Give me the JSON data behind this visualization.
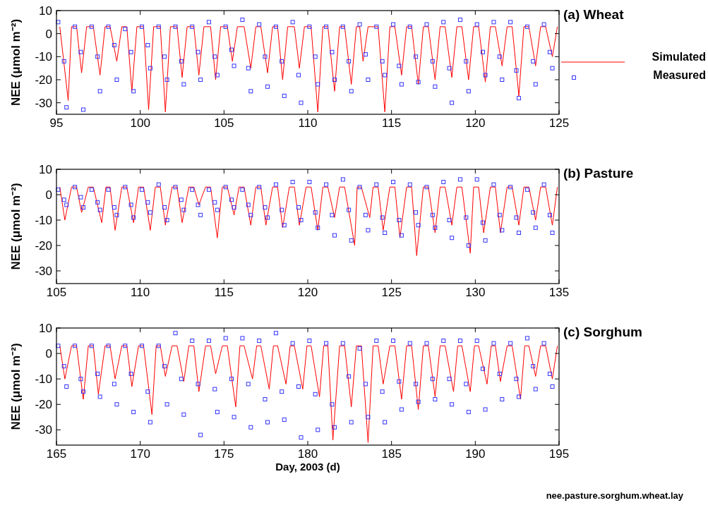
{
  "chart_data": [
    {
      "type": "line",
      "title": "(a) Wheat",
      "ylabel": "NEE (μmol m⁻²)",
      "xlim": [
        95,
        125
      ],
      "xticks": [
        95,
        100,
        105,
        110,
        115,
        120,
        125
      ],
      "ylim": [
        -35,
        10
      ],
      "yticks": [
        10,
        0,
        -10,
        -20,
        -30
      ],
      "legend": "right",
      "marker": "none",
      "series": [
        {
          "name": "Simulated",
          "color": "#ff0000",
          "x": [
            95.2,
            95.7,
            95.9,
            96.2,
            96.5,
            96.8,
            97.2,
            97.6,
            97.9,
            98.2,
            98.6,
            98.9,
            99.2,
            99.5,
            99.8,
            100.2,
            100.5,
            100.8,
            101.2,
            101.5,
            101.8,
            102.2,
            102.5,
            102.8,
            103.2,
            103.5,
            103.8,
            104.2,
            104.5,
            104.8,
            105.2,
            105.5,
            105.8,
            106.2,
            106.6,
            106.9,
            107.2,
            107.6,
            107.9,
            108.2,
            108.5,
            108.8,
            109.2,
            109.5,
            109.8,
            110.2,
            110.6,
            110.9,
            111.2,
            111.6,
            111.9,
            112.2,
            112.6,
            112.9,
            113.1,
            113.3,
            113.6,
            114.2,
            114.6,
            114.9,
            115.2,
            115.6,
            115.9,
            116.2,
            116.6,
            116.9,
            117.2,
            117.6,
            117.9,
            118.2,
            118.6,
            118.9,
            119.2,
            119.6,
            119.9,
            120.2,
            120.6,
            120.9,
            121.2,
            121.6,
            121.9,
            122.2,
            122.6,
            122.9,
            123.2,
            123.6,
            123.9,
            124.2,
            124.6,
            124.9
          ],
          "values": [
            3,
            -29,
            3,
            3,
            -17,
            3,
            3,
            -18,
            3,
            3,
            -12,
            3,
            3,
            -25,
            3,
            3,
            -33,
            3,
            3,
            -34,
            3,
            3,
            -19,
            3,
            3,
            -18,
            3,
            3,
            -20,
            3,
            3,
            -12,
            3,
            3,
            -15,
            3,
            3,
            -17,
            3,
            3,
            -20,
            3,
            3,
            -15,
            3,
            3,
            -34,
            3,
            3,
            -25,
            3,
            3,
            -22,
            3,
            3,
            -12,
            3,
            3,
            -34,
            3,
            3,
            -18,
            3,
            3,
            -22,
            3,
            3,
            -20,
            3,
            3,
            -19,
            3,
            3,
            -20,
            3,
            3,
            -21,
            3,
            3,
            -14,
            3,
            3,
            -27,
            3,
            3,
            -14,
            3,
            3,
            -10,
            3
          ]
        },
        {
          "name": "Measured",
          "type": "scatter",
          "marker": "square",
          "color": "#3333ff",
          "x": [
            95.1,
            95.45,
            95.6,
            96.1,
            96.45,
            96.6,
            97.1,
            97.45,
            97.6,
            98.1,
            98.45,
            98.6,
            99.1,
            99.45,
            99.6,
            100.1,
            100.45,
            100.6,
            101.1,
            101.45,
            101.6,
            102.1,
            102.45,
            102.6,
            103.1,
            103.45,
            103.6,
            104.1,
            104.45,
            104.6,
            105.1,
            105.45,
            105.6,
            106.1,
            106.45,
            106.6,
            107.1,
            107.45,
            107.6,
            108.1,
            108.45,
            108.6,
            109.1,
            109.45,
            109.6,
            110.1,
            110.45,
            110.6,
            111.1,
            111.45,
            111.6,
            112.1,
            112.45,
            112.6,
            113.1,
            113.45,
            113.6,
            114.1,
            114.45,
            114.6,
            115.1,
            115.45,
            115.6,
            116.1,
            116.45,
            116.6,
            117.1,
            117.45,
            117.6,
            118.1,
            118.45,
            118.6,
            119.1,
            119.45,
            119.6,
            120.1,
            120.45,
            120.6,
            121.1,
            121.45,
            121.6,
            122.1,
            122.45,
            122.6,
            123.1,
            123.45,
            123.6,
            124.1,
            124.45,
            124.6
          ],
          "values": [
            5,
            -12,
            -32,
            3,
            -8,
            -33,
            3,
            -10,
            -25,
            3,
            -5,
            -20,
            2,
            -8,
            -25,
            3,
            -5,
            -15,
            3,
            -10,
            -20,
            3,
            -12,
            -22,
            3,
            -8,
            -20,
            5,
            -10,
            -18,
            3,
            -7,
            -14,
            6,
            -15,
            -25,
            4,
            -10,
            -23,
            3,
            -12,
            -27,
            5,
            -18,
            -30,
            3,
            -10,
            -22,
            3,
            -8,
            -20,
            3,
            -12,
            -25,
            4,
            -9,
            -20,
            3,
            -12,
            -18,
            4,
            -14,
            -22,
            3,
            -10,
            -21,
            4,
            -12,
            -23,
            5,
            -15,
            -30,
            6,
            -12,
            -25,
            4,
            -8,
            -18,
            5,
            -10,
            -20,
            5,
            -16,
            -28,
            3,
            -12,
            -22,
            4,
            -8,
            -15
          ]
        }
      ]
    },
    {
      "type": "line",
      "title": "(b) Pasture",
      "ylabel": "NEE (μmol m⁻²)",
      "xlim": [
        105,
        135
      ],
      "xticks": [
        105,
        110,
        115,
        120,
        125,
        130,
        135
      ],
      "ylim": [
        -35,
        10
      ],
      "yticks": [
        10,
        0,
        -10,
        -20,
        -30
      ],
      "marker": "none",
      "series": [
        {
          "color": "#ff0000",
          "x": [
            105.2,
            105.5,
            105.9,
            106.2,
            106.5,
            106.9,
            107.2,
            107.7,
            107.95,
            108.2,
            108.5,
            108.9,
            109.2,
            109.6,
            109.9,
            110.2,
            110.6,
            110.9,
            111.2,
            111.5,
            111.9,
            112.2,
            112.5,
            112.9,
            113.2,
            113.5,
            113.9,
            114.2,
            114.6,
            114.9,
            115.2,
            115.6,
            115.9,
            116.2,
            116.6,
            116.9,
            117.2,
            117.5,
            117.9,
            118.2,
            118.5,
            118.9,
            119.2,
            119.5,
            119.9,
            120.2,
            120.6,
            120.9,
            121.2,
            121.6,
            121.9,
            122.2,
            122.8,
            122.95,
            123.2,
            123.7,
            123.9,
            124.2,
            124.5,
            124.9,
            125.2,
            125.5,
            125.9,
            126.2,
            126.5,
            126.9,
            127.2,
            127.6,
            127.9,
            128.2,
            128.6,
            128.9,
            129.2,
            129.7,
            129.9,
            130.2,
            130.5,
            130.9,
            131.2,
            131.5,
            131.9,
            132.2,
            132.6,
            132.9,
            133.2,
            133.6,
            133.9,
            134.2,
            134.6,
            134.9
          ],
          "values": [
            3,
            -10,
            3,
            3,
            -7,
            3,
            3,
            -11,
            3,
            3,
            -14,
            3,
            3,
            -11,
            3,
            3,
            -14,
            3,
            3,
            -12,
            3,
            3,
            -11,
            3,
            3,
            -4,
            3,
            3,
            -17,
            3,
            3,
            -8,
            3,
            3,
            -12,
            3,
            3,
            -12,
            3,
            3,
            -13,
            3,
            3,
            -12,
            3,
            3,
            -14,
            3,
            3,
            -9,
            3,
            3,
            -20,
            3,
            3,
            -9,
            3,
            3,
            -14,
            3,
            3,
            -17,
            3,
            3,
            -24,
            3,
            3,
            -15,
            3,
            3,
            -12,
            3,
            3,
            -23,
            3,
            3,
            -15,
            3,
            3,
            -15,
            3,
            3,
            -12,
            3,
            3,
            -10,
            3,
            3,
            -12,
            3
          ]
        },
        {
          "type": "scatter",
          "marker": "square",
          "color": "#3333ff",
          "x": [
            105.1,
            105.45,
            105.6,
            106.1,
            106.45,
            106.6,
            107.1,
            107.45,
            107.6,
            108.1,
            108.45,
            108.6,
            109.1,
            109.45,
            109.6,
            110.1,
            110.45,
            110.6,
            111.1,
            111.45,
            111.6,
            112.1,
            112.45,
            112.6,
            113.1,
            113.45,
            113.6,
            114.1,
            114.45,
            114.6,
            115.1,
            115.45,
            115.6,
            116.1,
            116.45,
            116.6,
            117.1,
            117.45,
            117.6,
            118.1,
            118.45,
            118.6,
            119.1,
            119.45,
            119.6,
            120.1,
            120.45,
            120.6,
            121.1,
            121.45,
            121.6,
            122.1,
            122.45,
            122.6,
            123.1,
            123.45,
            123.6,
            124.1,
            124.45,
            124.6,
            125.1,
            125.45,
            125.6,
            126.1,
            126.45,
            126.6,
            127.1,
            127.45,
            127.6,
            128.1,
            128.45,
            128.6,
            129.1,
            129.45,
            129.6,
            130.1,
            130.45,
            130.6,
            131.1,
            131.45,
            131.6,
            132.1,
            132.45,
            132.6,
            133.1,
            133.45,
            133.6,
            134.1,
            134.45,
            134.6
          ],
          "values": [
            2,
            -2,
            -4,
            3,
            -1,
            -5,
            2,
            -3,
            -6,
            2,
            -5,
            -8,
            3,
            -4,
            -9,
            2,
            -3,
            -7,
            4,
            -5,
            -10,
            3,
            -2,
            -6,
            2,
            -4,
            -8,
            2,
            -3,
            -6,
            3,
            -2,
            -5,
            2,
            -4,
            -8,
            3,
            -5,
            -9,
            4,
            -6,
            -12,
            5,
            -5,
            -10,
            5,
            -7,
            -13,
            4,
            -8,
            -16,
            6,
            -6,
            -18,
            3,
            -8,
            -14,
            4,
            -9,
            -15,
            5,
            -10,
            -16,
            4,
            -7,
            -12,
            3,
            -8,
            -13,
            5,
            -10,
            -17,
            6,
            -9,
            -20,
            6,
            -11,
            -18,
            4,
            -8,
            -14,
            3,
            -9,
            -15,
            2,
            -7,
            -13,
            4,
            -8,
            -15
          ]
        }
      ]
    },
    {
      "type": "line",
      "title": "(c) Sorghum",
      "ylabel": "NEE (μmol m⁻²)",
      "xlabel": "Day, 2003 (d)",
      "annotations": [
        "nee.pasture.sorghum.wheat.lay"
      ],
      "xlim": [
        165,
        195
      ],
      "xticks": [
        165,
        170,
        175,
        180,
        185,
        190,
        195
      ],
      "ylim": [
        -36,
        10
      ],
      "yticks": [
        10,
        0,
        -10,
        -20,
        -30
      ],
      "marker": "none",
      "series": [
        {
          "color": "#ff0000",
          "x": [
            165.2,
            165.5,
            165.9,
            166.2,
            166.6,
            166.9,
            167.2,
            167.5,
            167.9,
            168.2,
            168.5,
            168.9,
            169.2,
            169.5,
            169.9,
            170.2,
            170.7,
            170.95,
            171.2,
            171.5,
            171.9,
            172.2,
            172.6,
            172.9,
            173.2,
            173.5,
            173.9,
            174.2,
            174.5,
            174.9,
            175.2,
            175.7,
            175.95,
            176.2,
            176.7,
            176.95,
            177.2,
            177.7,
            177.95,
            178.2,
            178.7,
            178.95,
            179.2,
            179.7,
            179.95,
            180.2,
            180.7,
            180.95,
            181.2,
            181.5,
            181.9,
            182.2,
            182.6,
            182.9,
            183.2,
            183.6,
            183.9,
            184.2,
            184.5,
            184.9,
            185.2,
            185.6,
            185.9,
            186.2,
            186.6,
            186.9,
            187.2,
            187.6,
            187.9,
            188.2,
            188.7,
            188.95,
            189.2,
            189.7,
            189.95,
            190.2,
            190.7,
            190.95,
            191.2,
            191.5,
            191.9,
            192.2,
            192.7,
            192.95,
            193.2,
            193.6,
            193.9,
            194.2,
            194.6,
            194.9
          ],
          "values": [
            3,
            -10,
            3,
            3,
            -18,
            3,
            3,
            -16,
            3,
            3,
            -10,
            3,
            3,
            -13,
            3,
            3,
            -24,
            3,
            3,
            -9,
            3,
            3,
            -11,
            3,
            3,
            -15,
            3,
            3,
            -8,
            3,
            3,
            -21,
            3,
            3,
            -10,
            3,
            3,
            -14,
            3,
            3,
            -12,
            3,
            3,
            -14,
            3,
            3,
            -17,
            3,
            3,
            -34,
            3,
            3,
            -21,
            3,
            3,
            -35,
            3,
            3,
            -12,
            3,
            3,
            -18,
            3,
            3,
            -22,
            3,
            3,
            -17,
            3,
            3,
            -15,
            3,
            3,
            -15,
            3,
            3,
            -12,
            3,
            3,
            -11,
            3,
            3,
            -18,
            3,
            3,
            -9,
            3,
            3,
            -10,
            3
          ]
        },
        {
          "type": "scatter",
          "marker": "square",
          "color": "#3333ff",
          "x": [
            165.1,
            165.45,
            165.6,
            166.1,
            166.45,
            166.6,
            167.1,
            167.45,
            167.6,
            168.1,
            168.45,
            168.6,
            169.1,
            169.45,
            169.6,
            170.1,
            170.45,
            170.6,
            171.1,
            171.45,
            171.6,
            172.1,
            172.45,
            172.6,
            173.1,
            173.45,
            173.6,
            174.1,
            174.45,
            174.6,
            175.1,
            175.45,
            175.6,
            176.1,
            176.45,
            176.6,
            177.1,
            177.45,
            177.6,
            178.1,
            178.45,
            178.6,
            179.1,
            179.45,
            179.6,
            180.1,
            180.45,
            180.6,
            181.1,
            181.45,
            181.6,
            182.1,
            182.45,
            182.6,
            183.1,
            183.45,
            183.6,
            184.1,
            184.45,
            184.6,
            185.1,
            185.45,
            185.6,
            186.1,
            186.45,
            186.6,
            187.1,
            187.45,
            187.6,
            188.1,
            188.45,
            188.6,
            189.1,
            189.45,
            189.6,
            190.1,
            190.45,
            190.6,
            191.1,
            191.45,
            191.6,
            192.1,
            192.45,
            192.6,
            193.1,
            193.45,
            193.6,
            194.1,
            194.45,
            194.6
          ],
          "values": [
            3,
            -5,
            -13,
            3,
            -10,
            -15,
            3,
            -8,
            -17,
            3,
            -12,
            -20,
            3,
            -8,
            -23,
            3,
            -15,
            -27,
            3,
            -5,
            -20,
            8,
            -10,
            -24,
            5,
            -12,
            -32,
            5,
            -14,
            -23,
            6,
            -10,
            -25,
            6,
            -12,
            -29,
            5,
            -18,
            -27,
            8,
            -15,
            -26,
            4,
            -13,
            -33,
            5,
            -16,
            -30,
            4,
            -20,
            -29,
            4,
            -9,
            -27,
            2,
            -12,
            -25,
            5,
            -15,
            -27,
            5,
            -11,
            -22,
            4,
            -12,
            -19,
            4,
            -10,
            -18,
            5,
            -10,
            -20,
            5,
            -12,
            -23,
            5,
            -6,
            -22,
            4,
            -8,
            -18,
            4,
            -10,
            -17,
            6,
            -5,
            -14,
            4,
            -8,
            -13
          ]
        }
      ]
    }
  ]
}
